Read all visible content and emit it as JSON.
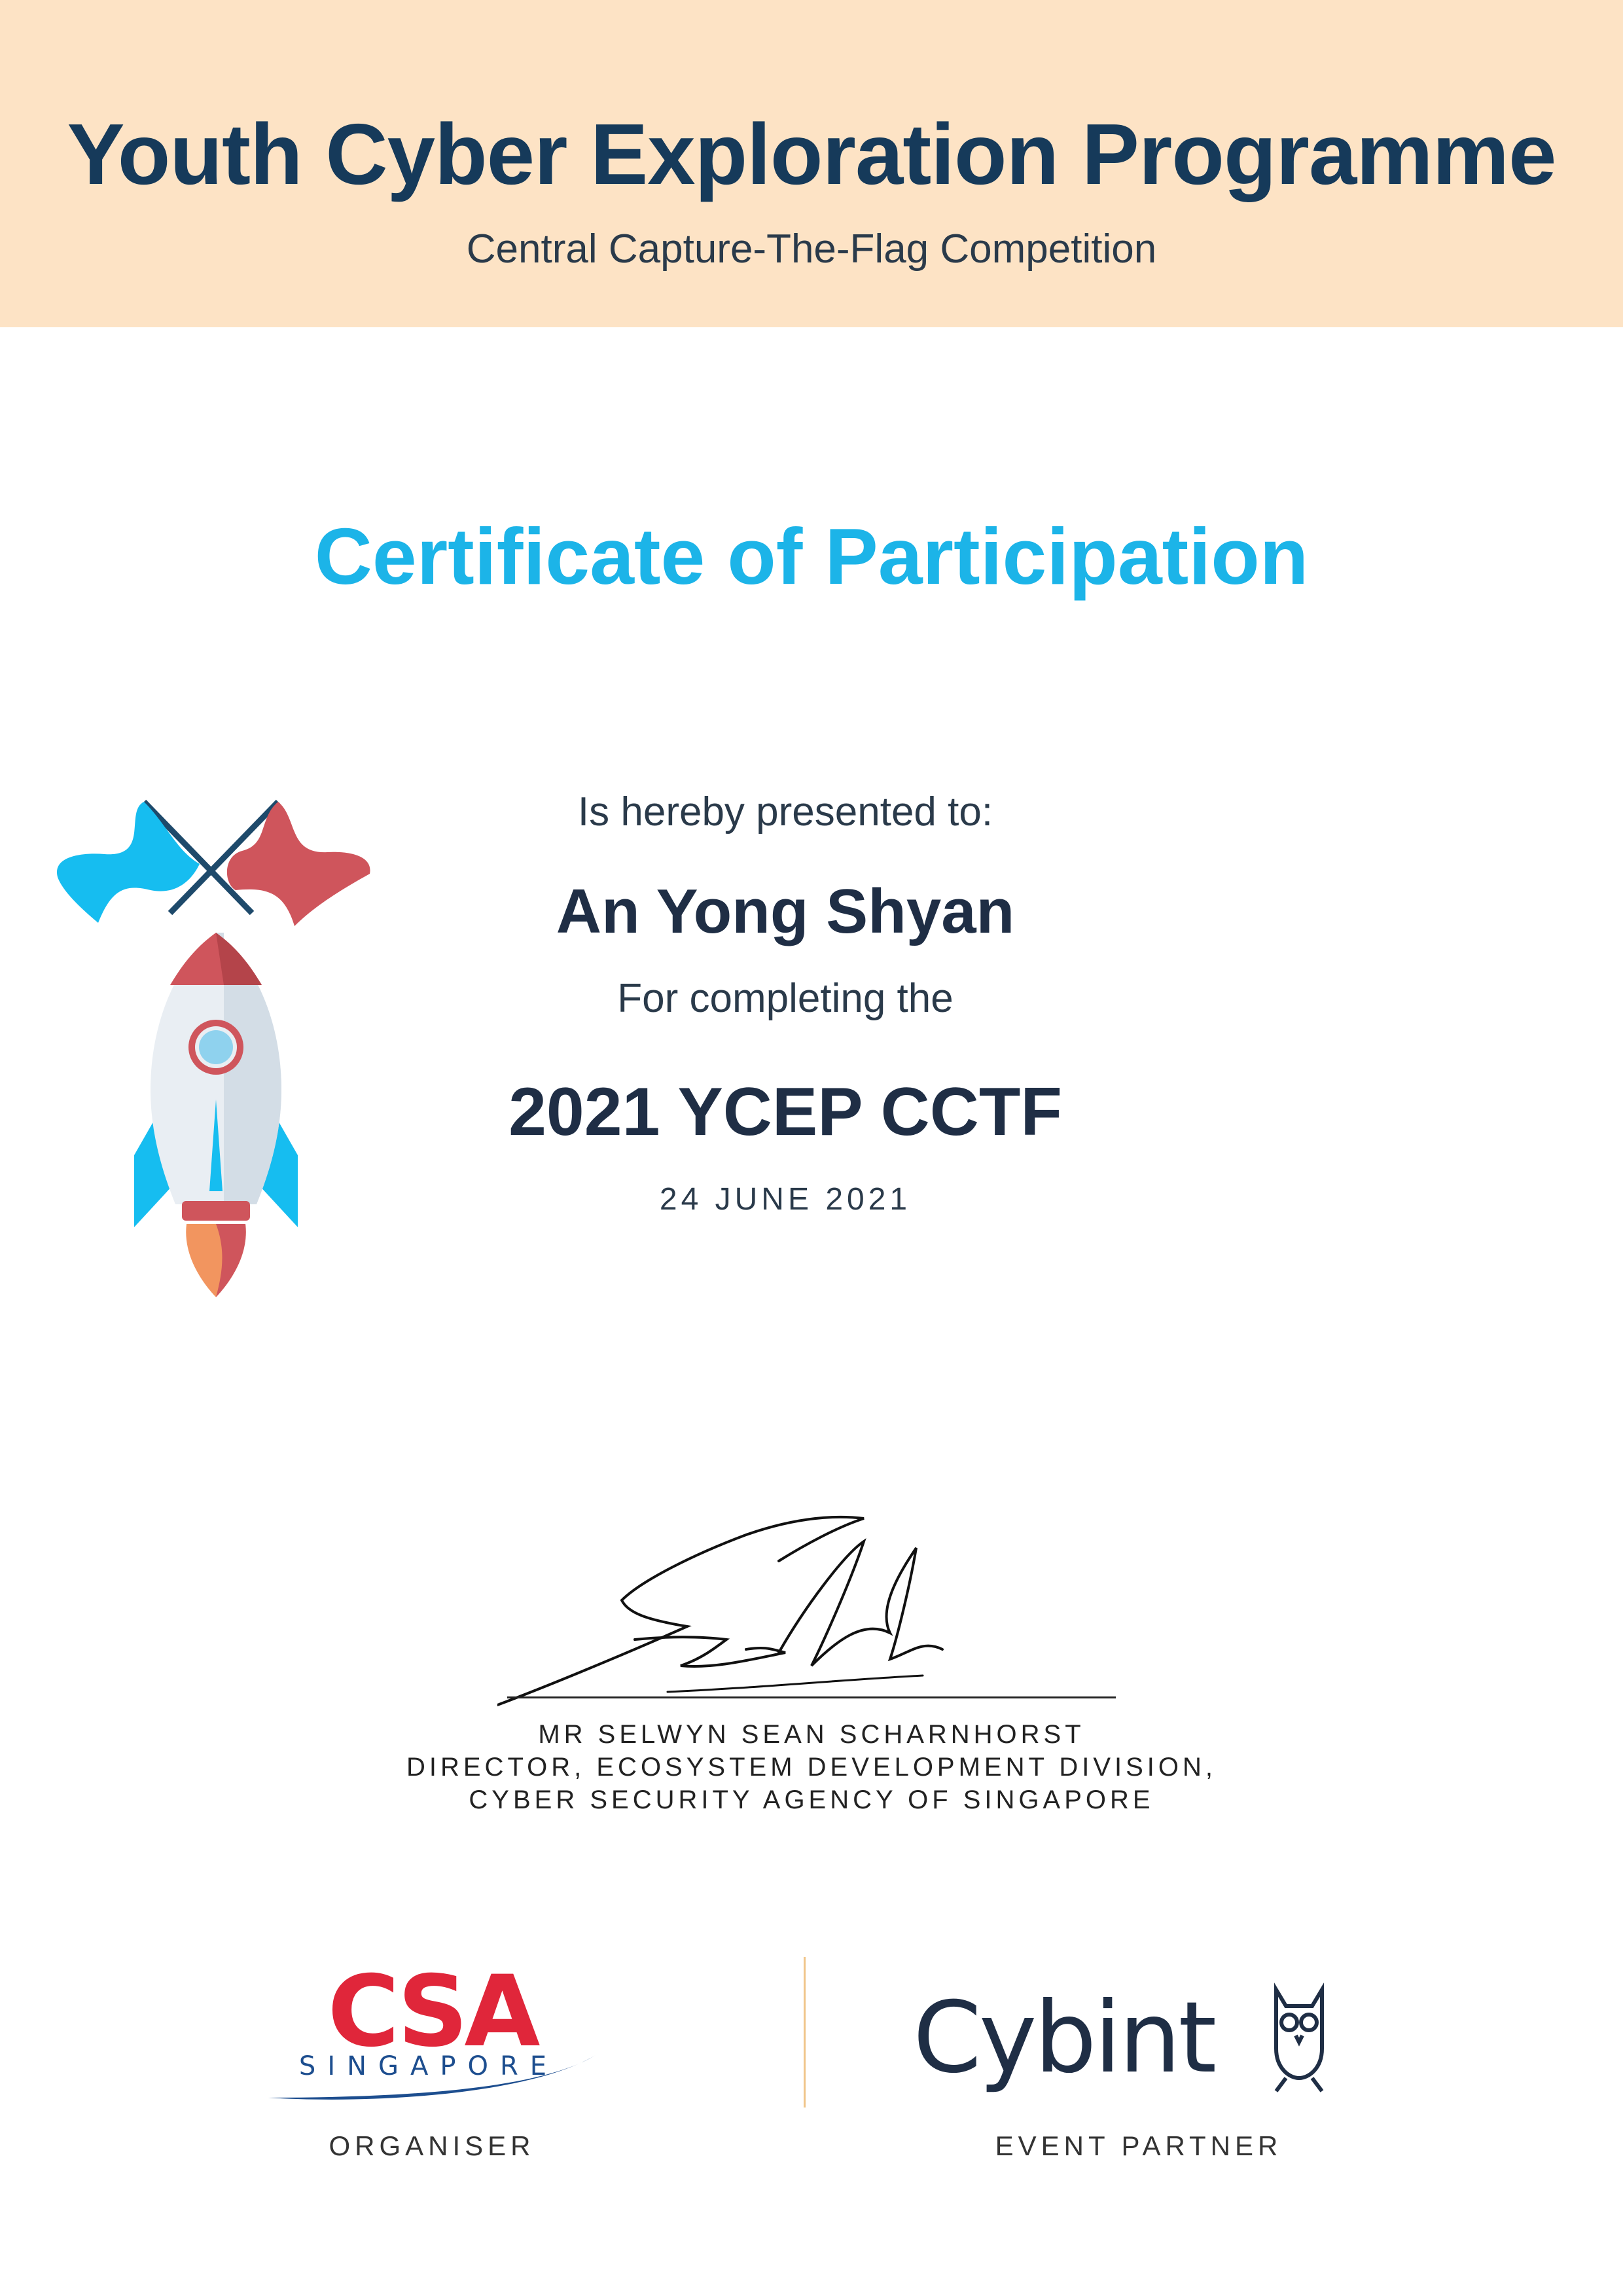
{
  "header": {
    "title": "Youth Cyber Exploration Programme",
    "subtitle": "Central Capture-The-Flag Competition",
    "background_color": "#fde3c5",
    "title_color": "#163a5a"
  },
  "certificate": {
    "title": "Certificate of Participation",
    "title_color": "#1cb4e8",
    "presented_text": "Is hereby presented to:",
    "recipient": "An Yong Shyan",
    "completing_text": "For completing the",
    "event": "2021 YCEP CCTF",
    "date": "24 JUNE 2021"
  },
  "signatory": {
    "name": "MR SELWYN SEAN SCHARNHORST",
    "title_line1": "DIRECTOR, ECOSYSTEM DEVELOPMENT DIVISION,",
    "title_line2": "CYBER SECURITY AGENCY OF SINGAPORE"
  },
  "logos": {
    "organiser": {
      "logo_text": "CSA",
      "logo_subtext": "SINGAPORE",
      "caption": "ORGANISER",
      "colors": {
        "red": "#e0263a",
        "blue": "#1d4e8f"
      }
    },
    "partner": {
      "logo_text": "Cybint",
      "caption": "EVENT PARTNER",
      "color": "#1f2e45"
    }
  },
  "illustration": {
    "icon": "rocket-with-flags-icon",
    "colors": {
      "blue": "#16bdf0",
      "red": "#cf555c",
      "body": "#e9eef3",
      "flame": "#f2955f"
    }
  }
}
